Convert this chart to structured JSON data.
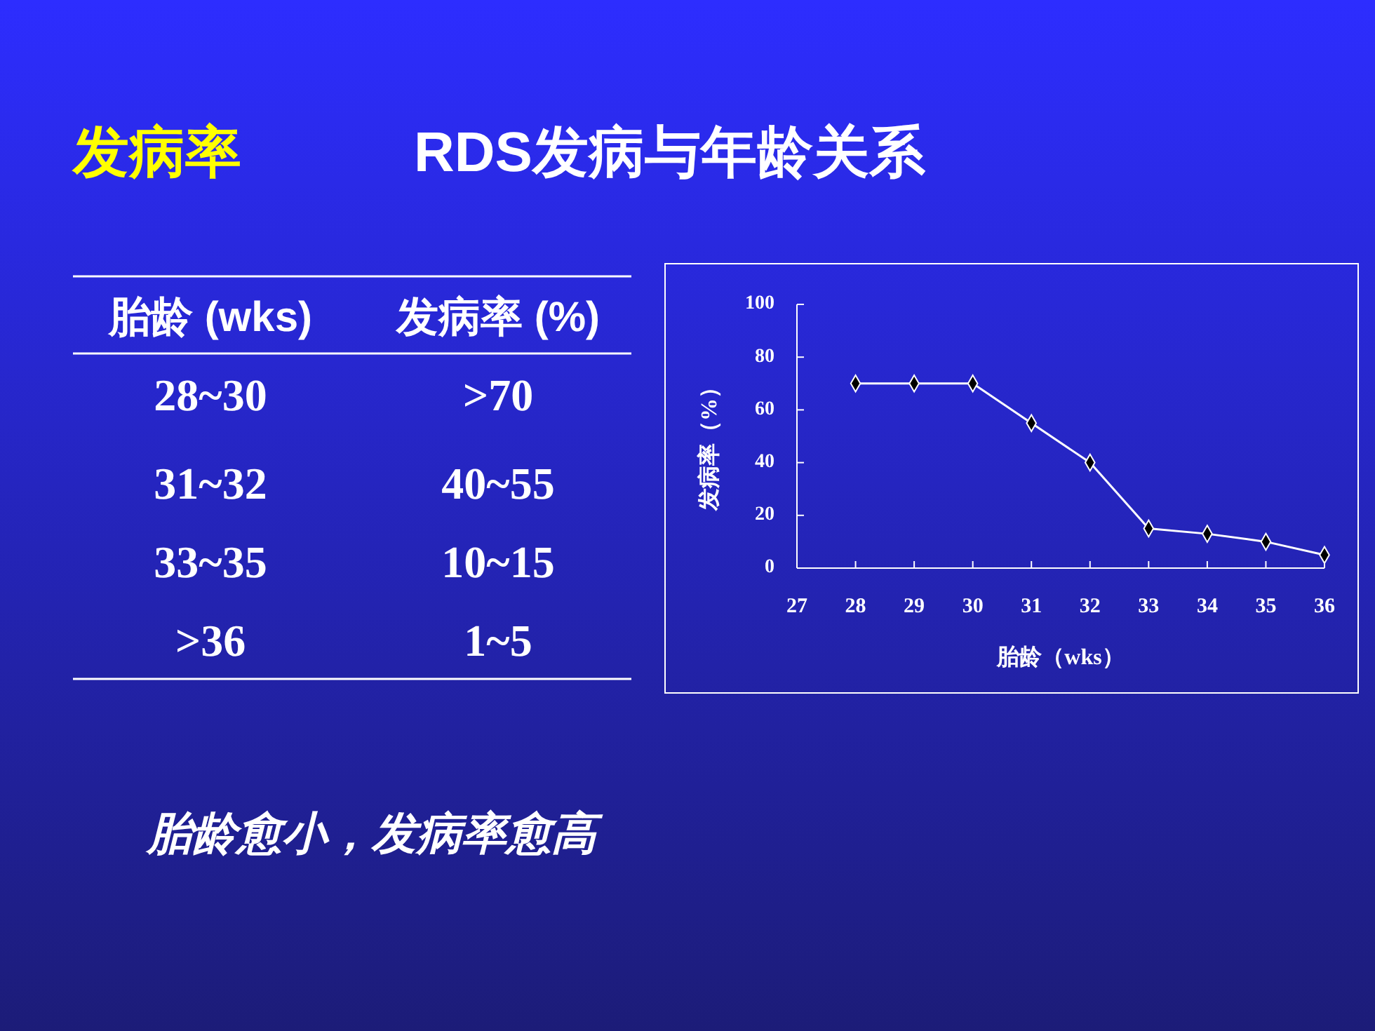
{
  "chart_data": [
    {
      "type": "other",
      "title": "RDS发病与年龄关系",
      "annotations": [
        "发病率",
        "胎龄 (wks)",
        "发病率 (%)",
        "28~30",
        ">70",
        "31~32",
        "40~55",
        "33~35",
        "10~15",
        ">36",
        "1~5",
        "胎龄愈小，发病率愈高"
      ]
    },
    {
      "type": "line",
      "x": [
        28,
        29,
        30,
        31,
        32,
        33,
        34,
        35,
        36
      ],
      "series": [
        {
          "color": "#ffffff",
          "values": [
            70,
            70,
            70,
            55,
            40,
            15,
            13,
            10,
            5
          ]
        }
      ],
      "xlim": [
        27,
        36
      ],
      "xticks": [
        27,
        28,
        29,
        30,
        31,
        32,
        33,
        34,
        35,
        36
      ],
      "ylim": [
        0,
        100
      ],
      "yticks": [
        0,
        20,
        40,
        60,
        80,
        100
      ],
      "xlabel": "胎龄（wks）",
      "ylabel": "发病率（%）",
      "marker": "diamond",
      "line_style": "solid",
      "grid": false
    }
  ]
}
